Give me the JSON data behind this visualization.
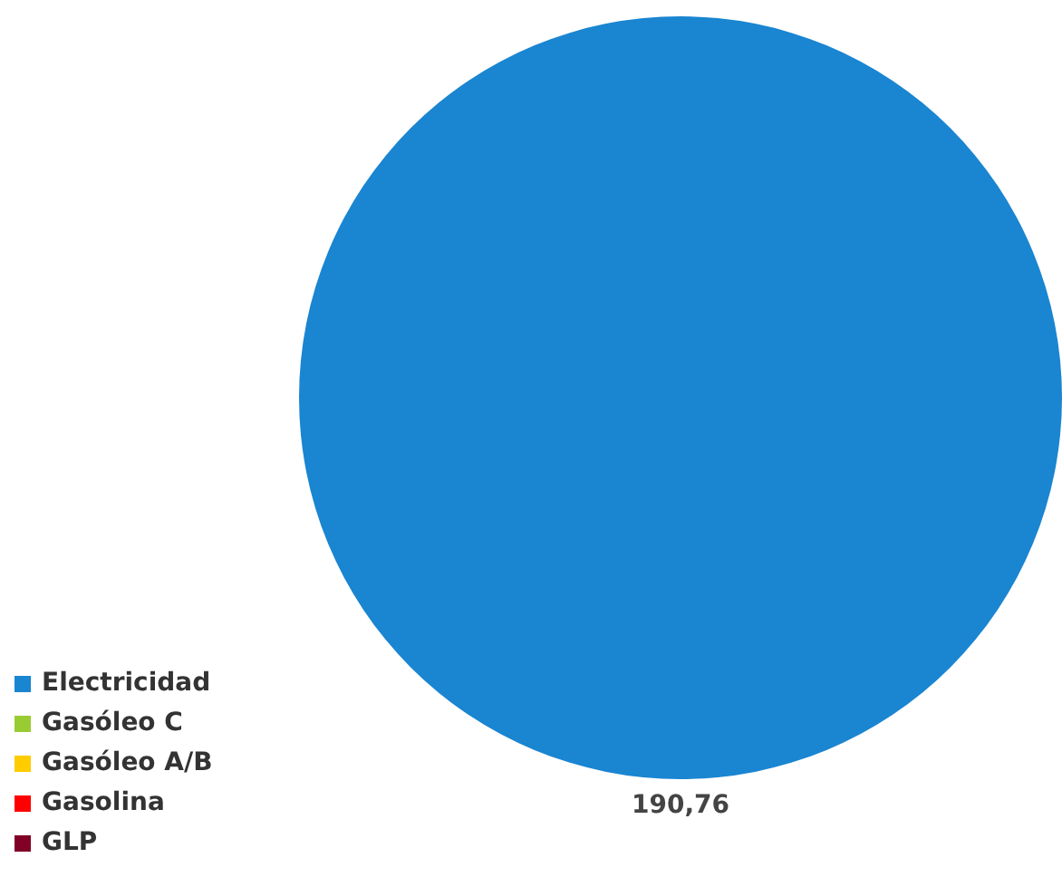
{
  "chart_data": {
    "type": "pie",
    "categories": [
      "Electricidad",
      "Gasóleo C",
      "Gasóleo A/B",
      "Gasolina",
      "GLP"
    ],
    "values": [
      190.76,
      0,
      0,
      0,
      0
    ],
    "colors": [
      "#1a85d1",
      "#99cc33",
      "#ffcc00",
      "#ff0000",
      "#800026"
    ],
    "value_labels": [
      "190,76",
      null,
      null,
      null,
      null
    ],
    "legend": "bottom left"
  }
}
